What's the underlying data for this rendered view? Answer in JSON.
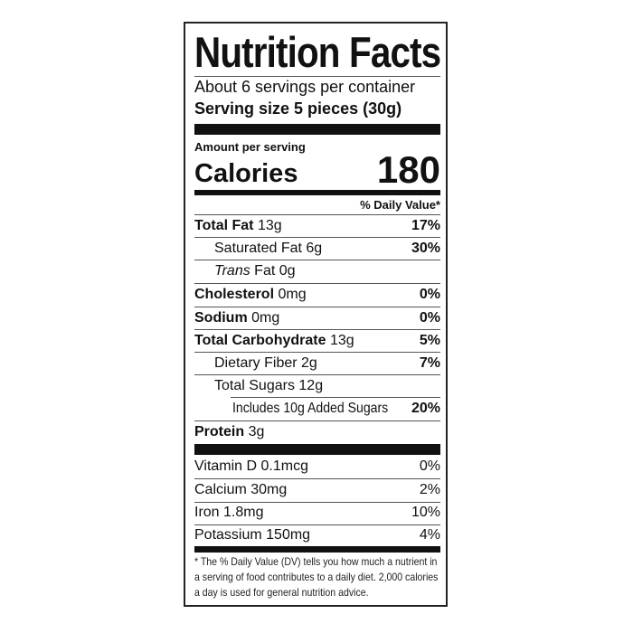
{
  "title": "Nutrition Facts",
  "servings": "About 6 servings per container",
  "serving_size": "Serving size 5 pieces (30g)",
  "amount_per_serving": "Amount per serving",
  "calories_label": "Calories",
  "calories_value": "180",
  "dv_header": "% Daily Value*",
  "nutrients": [
    {
      "name": "Total Fat",
      "amount": "13g",
      "dv": "17%"
    },
    {
      "name": "Saturated Fat",
      "amount": "6g",
      "dv": "30%"
    },
    {
      "name": "Trans",
      "name2": "Fat",
      "amount": "0g",
      "dv": ""
    },
    {
      "name": "Cholesterol",
      "amount": "0mg",
      "dv": "0%"
    },
    {
      "name": "Sodium",
      "amount": "0mg",
      "dv": "0%"
    },
    {
      "name": "Total Carbohydrate",
      "amount": "13g",
      "dv": "5%"
    },
    {
      "name": "Dietary Fiber",
      "amount": "2g",
      "dv": "7%"
    },
    {
      "name": "Total Sugars",
      "amount": "12g",
      "dv": ""
    },
    {
      "name": "Includes 10g Added Sugars",
      "amount": "",
      "dv": "20%"
    },
    {
      "name": "Protein",
      "amount": "3g",
      "dv": ""
    }
  ],
  "vitamins": [
    {
      "label": "Vitamin D 0.1mcg",
      "dv": "0%"
    },
    {
      "label": "Calcium 30mg",
      "dv": "2%"
    },
    {
      "label": "Iron 1.8mg",
      "dv": "10%"
    },
    {
      "label": "Potassium 150mg",
      "dv": "4%"
    }
  ],
  "footnote": "* The % Daily Value (DV) tells you how much a nutrient in a serving of food contributes to a daily diet. 2,000 calories a day is used for general nutrition advice."
}
